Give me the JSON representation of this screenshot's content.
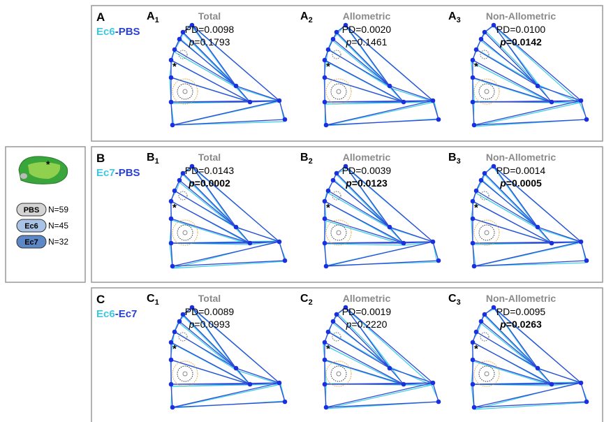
{
  "legend": {
    "asterisk": "*",
    "items": [
      {
        "label": "PBS",
        "n": "N=59"
      },
      {
        "label": "Ec6",
        "n": "N=45"
      },
      {
        "label": "Ec7",
        "n": "N=32"
      }
    ]
  },
  "rows": [
    {
      "letter": "A",
      "group": {
        "first": "Ec6",
        "sep": "-",
        "second": "PBS"
      },
      "panels": [
        {
          "letter": "A",
          "sub": "1",
          "title": "Total",
          "pd": "PD=0.0098",
          "p": "p",
          "p_rest": "=0.1793",
          "bold": false,
          "asterisk": "*"
        },
        {
          "letter": "A",
          "sub": "2",
          "title": "Allometric",
          "pd": "PD=0.0020",
          "p": "p",
          "p_rest": "=0.1461",
          "bold": false,
          "asterisk": "*"
        },
        {
          "letter": "A",
          "sub": "3",
          "title": "Non-Allometric",
          "pd": "PD=0.0100",
          "p": "p",
          "p_rest": "=0.0142",
          "bold": true,
          "asterisk": "*"
        }
      ]
    },
    {
      "letter": "B",
      "group": {
        "first": "Ec7",
        "sep": "-",
        "second": "PBS"
      },
      "panels": [
        {
          "letter": "B",
          "sub": "1",
          "title": "Total",
          "pd": "PD=0.0143",
          "p": "p",
          "p_rest": "=0.0002",
          "bold": true,
          "asterisk": "*"
        },
        {
          "letter": "B",
          "sub": "2",
          "title": "Allometric",
          "pd": "PD=0.0039",
          "p": "p",
          "p_rest": "=0.0123",
          "bold": true,
          "asterisk": "*"
        },
        {
          "letter": "B",
          "sub": "3",
          "title": "Non-Allometric",
          "pd": "PD=0.0014",
          "p": "p",
          "p_rest": "=0.0005",
          "bold": true,
          "asterisk": "*"
        }
      ]
    },
    {
      "letter": "C",
      "group": {
        "first": "Ec6",
        "sep": "-",
        "second": "Ec7"
      },
      "panels": [
        {
          "letter": "C",
          "sub": "1",
          "title": "Total",
          "pd": "PD=0.0089",
          "p": "p",
          "p_rest": "=0.0993",
          "bold": false,
          "asterisk": "*"
        },
        {
          "letter": "C",
          "sub": "2",
          "title": "Allometric",
          "pd": "PD=0.0019",
          "p": "p",
          "p_rest": "=0.2220",
          "bold": false,
          "asterisk": "*"
        },
        {
          "letter": "C",
          "sub": "3",
          "title": "Non-Allometric",
          "pd": "PD=0.0095",
          "p": "p",
          "p_rest": "=0.0263",
          "bold": true,
          "asterisk": "*"
        }
      ]
    }
  ]
}
